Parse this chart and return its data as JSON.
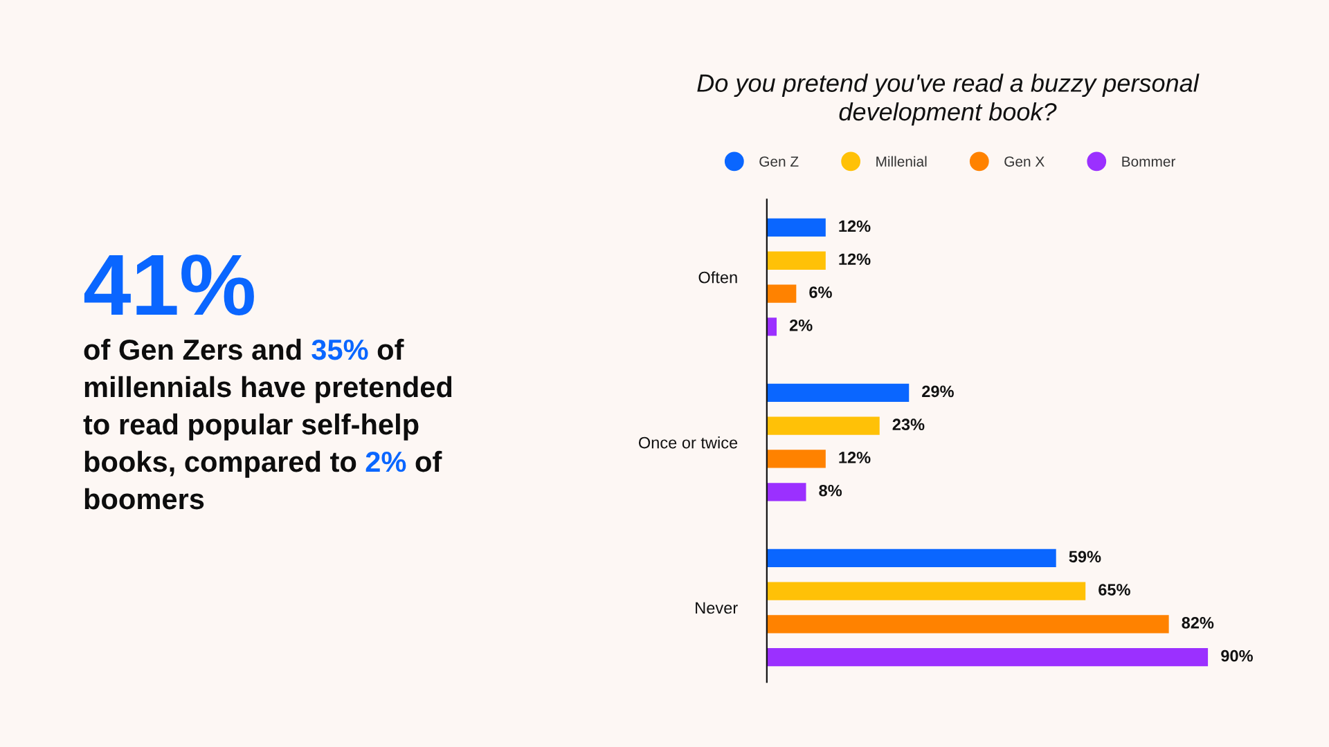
{
  "chart_data": {
    "type": "bar",
    "orientation": "horizontal",
    "title": "Do you pretend you've read a buzzy personal\ndevelopment book?",
    "categories": [
      "Often",
      "Once or twice",
      "Never"
    ],
    "series": [
      {
        "name": "Gen Z",
        "color": "#0a66ff",
        "values": [
          12,
          29,
          59
        ],
        "value_labels": [
          "12%",
          "29%",
          "59%"
        ]
      },
      {
        "name": "Millenial",
        "color": "#ffc107",
        "values": [
          12,
          23,
          65
        ],
        "value_labels": [
          "12%",
          "23%",
          "65%"
        ]
      },
      {
        "name": "Gen X",
        "color": "#ff8200",
        "values": [
          6,
          12,
          82
        ],
        "value_labels": [
          "6%",
          "12%",
          "82%"
        ]
      },
      {
        "name": "Bommer",
        "color": "#9b30ff",
        "values": [
          2,
          8,
          90
        ],
        "value_labels": [
          "2%",
          "8%",
          "90%"
        ]
      }
    ],
    "legend": "top",
    "tick_labels": "y",
    "annotations": [
      "41%",
      "of Gen Zers and 35% of\nmillennials have pretended\nto read popular self-help\nbooks, compared to 2% of\nboomers"
    ]
  }
}
